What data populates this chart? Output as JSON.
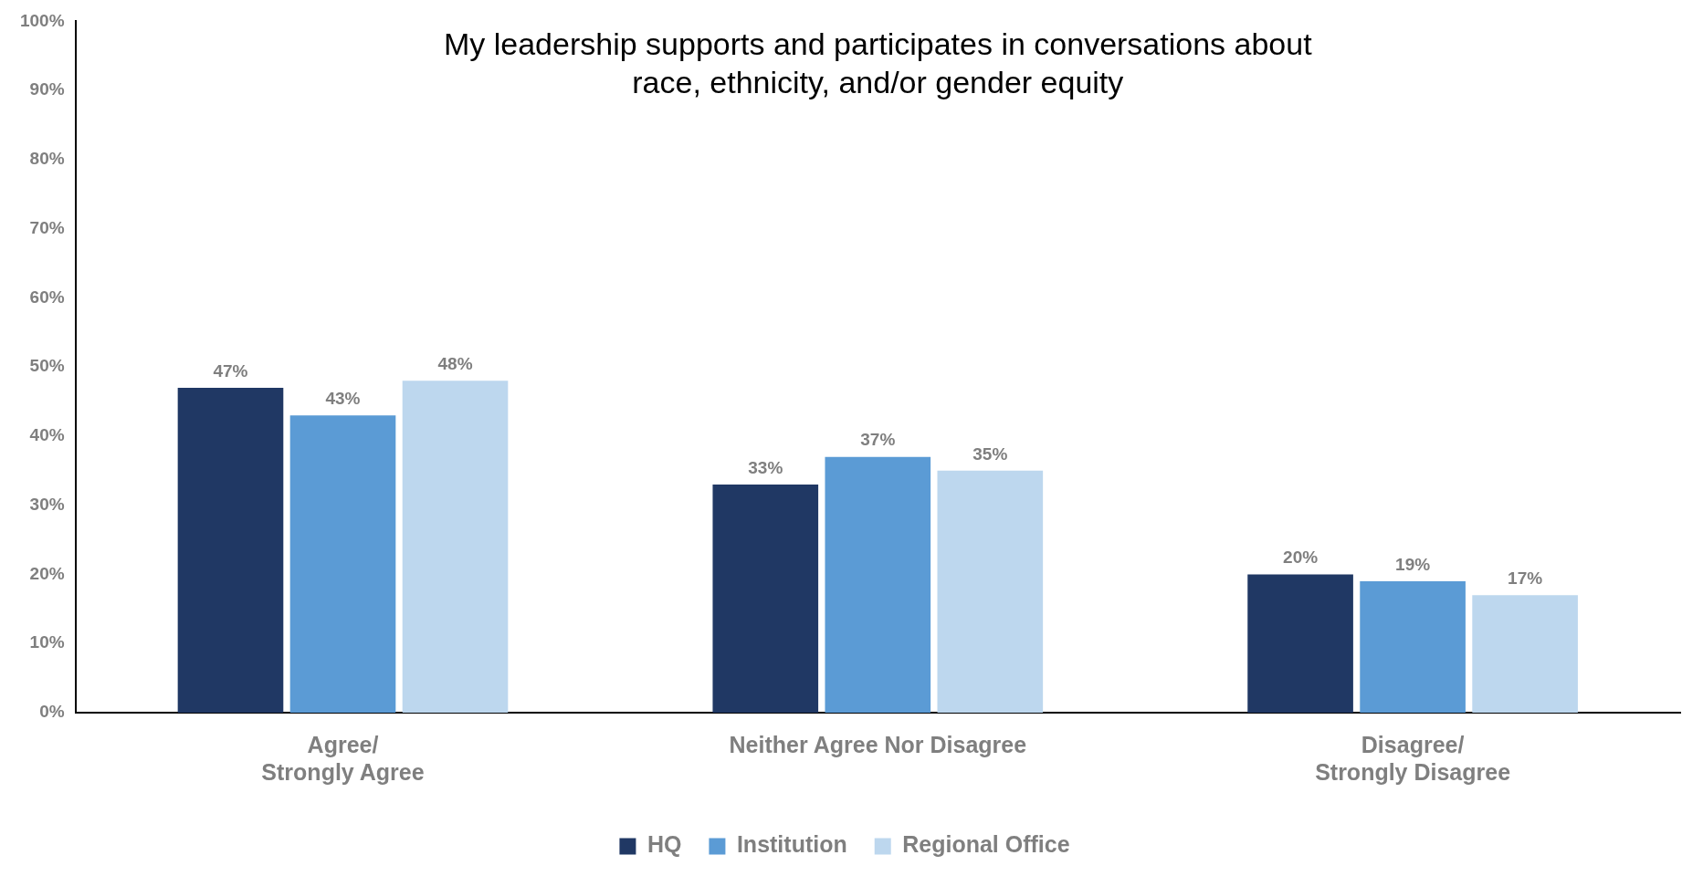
{
  "chart_data": {
    "type": "bar",
    "title": "My leadership supports and participates in conversations about\nrace, ethnicity, and/or gender equity",
    "categories": [
      "Agree/\nStrongly Agree",
      "Neither Agree Nor Disagree",
      "Disagree/\nStrongly Disagree"
    ],
    "series": [
      {
        "name": "HQ",
        "color": "#203864",
        "values": [
          47,
          33,
          20
        ],
        "value_labels": [
          "47%",
          "33%",
          "20%"
        ]
      },
      {
        "name": "Institution",
        "color": "#5b9bd5",
        "values": [
          43,
          37,
          19
        ],
        "value_labels": [
          "43%",
          "37%",
          "19%"
        ]
      },
      {
        "name": "Regional Office",
        "color": "#bdd7ee",
        "values": [
          48,
          35,
          17
        ],
        "value_labels": [
          "48%",
          "35%",
          "17%"
        ]
      }
    ],
    "ylim": [
      0,
      100
    ],
    "yticks": [
      {
        "value": 0,
        "label": "0%"
      },
      {
        "value": 10,
        "label": "10%"
      },
      {
        "value": 20,
        "label": "20%"
      },
      {
        "value": 30,
        "label": "30%"
      },
      {
        "value": 40,
        "label": "40%"
      },
      {
        "value": 50,
        "label": "50%"
      },
      {
        "value": 60,
        "label": "60%"
      },
      {
        "value": 70,
        "label": "70%"
      },
      {
        "value": 80,
        "label": "80%"
      },
      {
        "value": 90,
        "label": "90%"
      },
      {
        "value": 100,
        "label": "100%"
      }
    ],
    "grid": false,
    "legend": "bottom"
  }
}
